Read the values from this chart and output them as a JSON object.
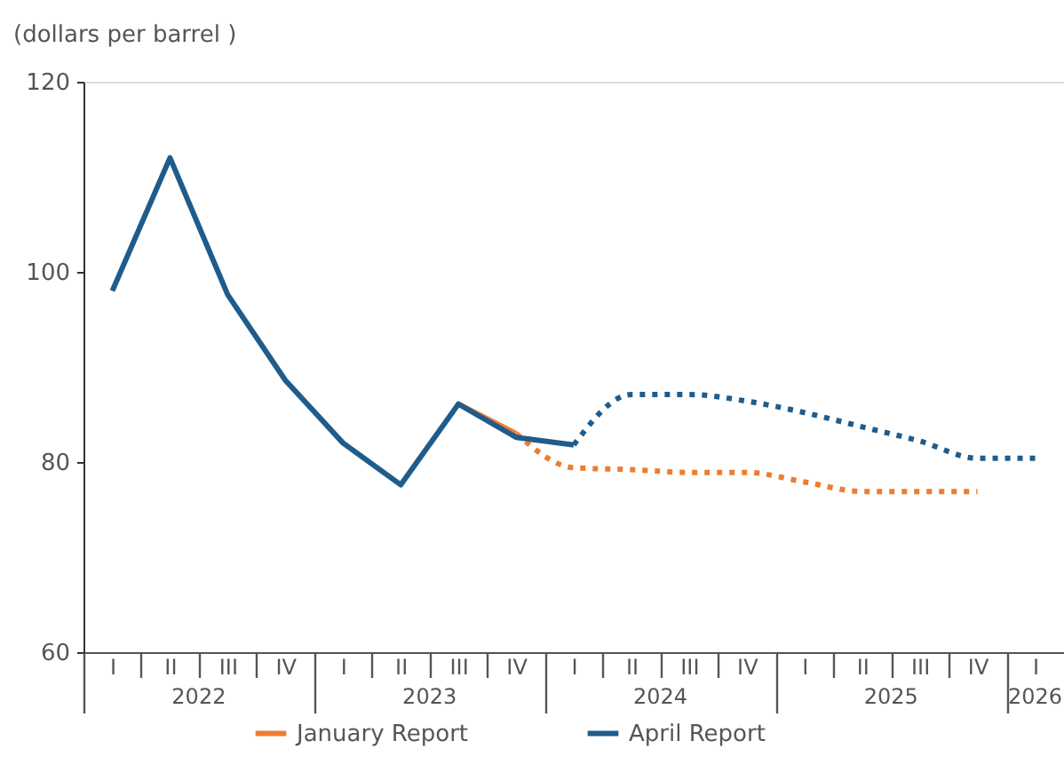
{
  "chart_data": {
    "type": "line",
    "ylabel": "(dollars per barrel )",
    "ylim": [
      60,
      120
    ],
    "yticks": [
      60,
      80,
      100,
      120
    ],
    "categories": [
      "I",
      "II",
      "III",
      "IV",
      "I",
      "II",
      "III",
      "IV",
      "I",
      "II",
      "III",
      "IV",
      "I",
      "II",
      "III",
      "IV",
      "I"
    ],
    "annotations": [
      "2022",
      "2023",
      "2024",
      "2025",
      "2026"
    ],
    "legend": "bottom",
    "grid": false,
    "series": [
      {
        "name": "January Report",
        "color": "#ed7d31",
        "line_style": "solid",
        "values": [
          null,
          null,
          null,
          null,
          null,
          null,
          86.1,
          83.0,
          null,
          null,
          null,
          null,
          null,
          null,
          null,
          null,
          null
        ]
      },
      {
        "color": "#ed7d31",
        "line_style": "dotted",
        "values": [
          null,
          null,
          null,
          null,
          null,
          null,
          null,
          83.0,
          79.4,
          79.2,
          78.9,
          78.9,
          77.9,
          76.9,
          76.9,
          76.9,
          null
        ]
      },
      {
        "name": "April Report",
        "color": "#1f5c8b",
        "line_style": "solid",
        "values": [
          98.0,
          112.0,
          97.6,
          88.6,
          82.0,
          77.6,
          86.1,
          82.6,
          81.8,
          null,
          null,
          null,
          null,
          null,
          null,
          null,
          null
        ]
      },
      {
        "color": "#1f5c8b",
        "line_style": "dotted",
        "values": [
          null,
          null,
          null,
          null,
          null,
          null,
          null,
          null,
          81.8,
          87.1,
          87.1,
          86.4,
          85.2,
          83.7,
          82.2,
          80.4,
          80.4
        ]
      }
    ]
  }
}
